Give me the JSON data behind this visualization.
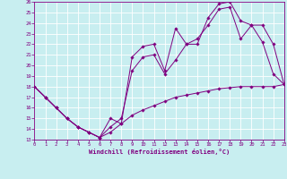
{
  "xlabel": "Windchill (Refroidissement éolien,°C)",
  "background_color": "#c8eef0",
  "grid_color": "#ffffff",
  "line_color": "#800080",
  "xlim": [
    0,
    23
  ],
  "ylim": [
    13,
    26
  ],
  "xtick_vals": [
    0,
    1,
    2,
    3,
    4,
    5,
    6,
    7,
    8,
    9,
    10,
    11,
    12,
    13,
    14,
    15,
    16,
    17,
    18,
    19,
    20,
    21,
    22,
    23
  ],
  "ytick_vals": [
    13,
    14,
    15,
    16,
    17,
    18,
    19,
    20,
    21,
    22,
    23,
    24,
    25,
    26
  ],
  "line1_x": [
    0,
    1,
    2,
    3,
    4,
    5,
    6,
    7,
    8,
    9,
    10,
    11,
    12,
    13,
    14,
    15,
    16,
    17,
    18,
    19,
    20,
    21,
    22,
    23
  ],
  "line1_y": [
    18,
    17,
    16,
    15,
    14.2,
    13.7,
    13.2,
    13.7,
    14.5,
    15.3,
    15.8,
    16.2,
    16.6,
    17.0,
    17.2,
    17.4,
    17.6,
    17.8,
    17.9,
    18.0,
    18.0,
    18.0,
    18.0,
    18.2
  ],
  "line2_x": [
    0,
    1,
    2,
    3,
    4,
    5,
    6,
    7,
    8,
    9,
    10,
    11,
    12,
    13,
    14,
    15,
    16,
    17,
    18,
    19,
    20,
    21,
    22,
    23
  ],
  "line2_y": [
    18,
    17,
    16,
    15,
    14.2,
    13.7,
    13.2,
    15.0,
    14.5,
    20.8,
    21.8,
    22.0,
    19.5,
    23.5,
    22.0,
    22.0,
    24.5,
    25.8,
    26.0,
    24.2,
    23.8,
    22.2,
    19.2,
    18.2
  ],
  "line3_x": [
    0,
    1,
    2,
    3,
    4,
    5,
    6,
    7,
    8,
    9,
    10,
    11,
    12,
    13,
    14,
    15,
    16,
    17,
    18,
    19,
    20,
    21,
    22,
    23
  ],
  "line3_y": [
    18,
    17,
    16,
    15,
    14.2,
    13.7,
    13.2,
    14.2,
    15.0,
    19.5,
    20.8,
    21.0,
    19.2,
    20.5,
    22.0,
    22.5,
    23.8,
    25.3,
    25.5,
    22.5,
    23.8,
    23.8,
    22.0,
    18.2
  ]
}
